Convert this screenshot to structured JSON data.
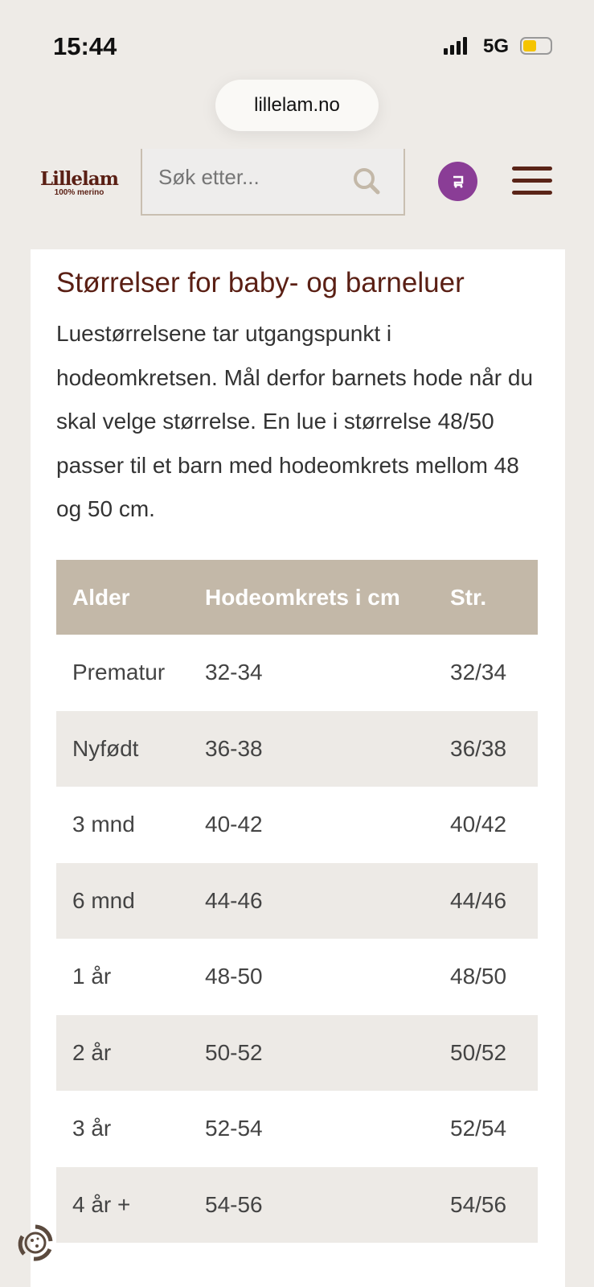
{
  "status": {
    "time": "15:44",
    "network": "5G"
  },
  "browser": {
    "url": "lillelam.no"
  },
  "header": {
    "logo": "Lillelam",
    "logo_tagline": "100% merino",
    "search_placeholder": "Søk etter..."
  },
  "content": {
    "title": "Størrelser for baby- og barneluer",
    "intro": "Luestørrelsene tar utgangspunkt i hodeomkretsen. Mål derfor barnets hode når du skal velge størrelse. En lue i størrelse 48/50 passer til et barn med hodeomkrets mellom 48 og 50 cm.",
    "table": {
      "headers": [
        "Alder",
        "Hodeomkrets i cm",
        "Str."
      ],
      "rows": [
        [
          "Prematur",
          "32-34",
          "32/34"
        ],
        [
          "Nyfødt",
          "36-38",
          "36/38"
        ],
        [
          "3 mnd",
          "40-42",
          "40/42"
        ],
        [
          "6 mnd",
          "44-46",
          "44/46"
        ],
        [
          "1 år",
          "48-50",
          "48/50"
        ],
        [
          "2 år",
          "50-52",
          "50/52"
        ],
        [
          "3 år",
          "52-54",
          "52/54"
        ],
        [
          "4 år +",
          "54-56",
          "54/56"
        ]
      ]
    }
  },
  "colors": {
    "brand": "#5a1f14",
    "cart": "#8a3d96",
    "table_header": "#c3b8a8"
  }
}
